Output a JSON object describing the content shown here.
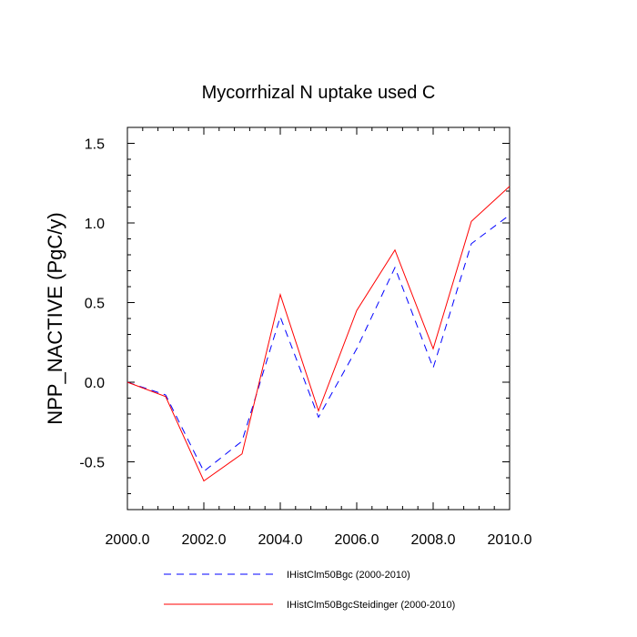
{
  "chart_data": {
    "type": "line",
    "title": "Mycorrhizal N uptake used C",
    "xlabel": "",
    "ylabel": "NPP_NACTIVE  (PgC/y)",
    "xlim": [
      2000,
      2010
    ],
    "ylim": [
      -0.8,
      1.6
    ],
    "x_ticks": [
      2000,
      2002,
      2004,
      2006,
      2008,
      2010
    ],
    "x_tick_labels": [
      "2000.0",
      "2002.0",
      "2004.0",
      "2006.0",
      "2008.0",
      "2010.0"
    ],
    "y_ticks": [
      -0.5,
      0.0,
      0.5,
      1.0,
      1.5
    ],
    "y_tick_labels": [
      "-0.5",
      "0.0",
      "0.5",
      "1.0",
      "1.5"
    ],
    "grid": false,
    "legend_position": "bottom",
    "x": [
      2000,
      2001,
      2002,
      2003,
      2004,
      2005,
      2006,
      2007,
      2008,
      2009,
      2010
    ],
    "series": [
      {
        "name": "IHistClm50Bgc (2000-2010)",
        "color": "#0000ff",
        "style": "dashed",
        "values": [
          0.0,
          -0.08,
          -0.56,
          -0.37,
          0.41,
          -0.22,
          0.21,
          0.72,
          0.09,
          0.87,
          1.05
        ]
      },
      {
        "name": "IHistClm50BgcSteidinger (2000-2010)",
        "color": "#ff0000",
        "style": "solid",
        "values": [
          0.0,
          -0.09,
          -0.62,
          -0.45,
          0.55,
          -0.18,
          0.45,
          0.83,
          0.21,
          1.01,
          1.23
        ]
      }
    ]
  }
}
